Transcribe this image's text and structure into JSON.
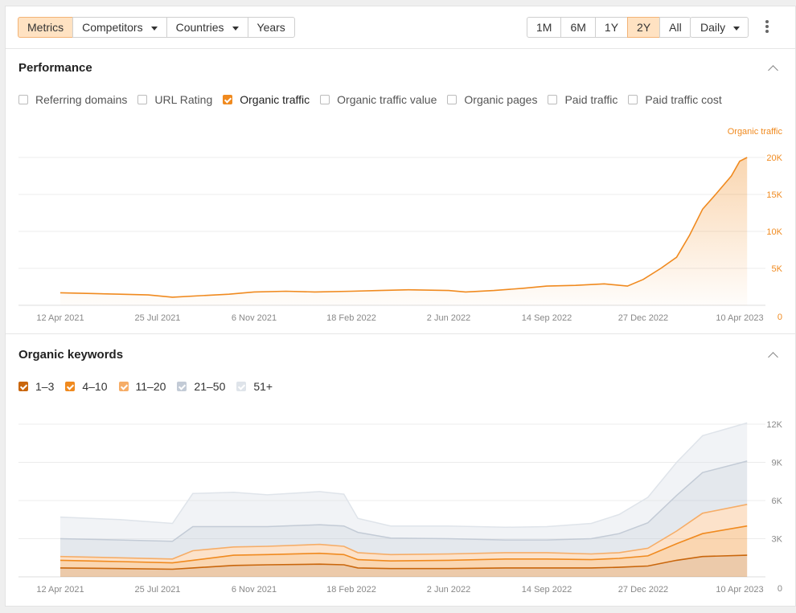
{
  "toolbar": {
    "tabs": [
      {
        "label": "Metrics",
        "active": true
      },
      {
        "label": "Competitors",
        "dropdown": true
      },
      {
        "label": "Countries",
        "dropdown": true
      },
      {
        "label": "Years"
      }
    ],
    "ranges": [
      {
        "label": "1M"
      },
      {
        "label": "6M"
      },
      {
        "label": "1Y"
      },
      {
        "label": "2Y",
        "active": true
      },
      {
        "label": "All"
      }
    ],
    "interval": "Daily"
  },
  "performance": {
    "title": "Performance",
    "metrics": [
      {
        "label": "Referring domains",
        "checked": false
      },
      {
        "label": "URL Rating",
        "checked": false
      },
      {
        "label": "Organic traffic",
        "checked": true
      },
      {
        "label": "Organic traffic value",
        "checked": false
      },
      {
        "label": "Organic pages",
        "checked": false
      },
      {
        "label": "Paid traffic",
        "checked": false
      },
      {
        "label": "Paid traffic cost",
        "checked": false
      }
    ]
  },
  "keywords": {
    "title": "Organic keywords",
    "buckets": [
      {
        "label": "1–3",
        "color": "#c9660c"
      },
      {
        "label": "4–10",
        "color": "#f08a1f"
      },
      {
        "label": "11–20",
        "color": "#f6ad67"
      },
      {
        "label": "21–50",
        "color": "#c3cbd6"
      },
      {
        "label": "51+",
        "color": "#dfe4ea"
      }
    ]
  },
  "colors": {
    "accent": "#f08a1f",
    "accent_light": "#ffe2c2"
  },
  "chart_data": [
    {
      "type": "area",
      "title": "",
      "series_label": "Organic traffic",
      "x_ticks": [
        "12 Apr 2021",
        "25 Jul 2021",
        "6 Nov 2021",
        "18 Feb 2022",
        "2 Jun 2022",
        "14 Sep 2022",
        "27 Dec 2022",
        "10 Apr 2023"
      ],
      "y_ticks": [
        "0",
        "5K",
        "10K",
        "15K",
        "20K"
      ],
      "ylim": [
        0,
        20000
      ],
      "series": [
        {
          "name": "Organic traffic",
          "color": "#f08a1f",
          "x": [
            "2021-04-12",
            "2021-05-15",
            "2021-06-15",
            "2021-07-15",
            "2021-08-10",
            "2021-09-10",
            "2021-10-10",
            "2021-11-06",
            "2021-12-10",
            "2022-01-10",
            "2022-02-18",
            "2022-03-20",
            "2022-04-20",
            "2022-06-02",
            "2022-06-20",
            "2022-07-20",
            "2022-08-20",
            "2022-09-14",
            "2022-10-15",
            "2022-11-15",
            "2022-12-10",
            "2022-12-27",
            "2023-01-15",
            "2023-02-01",
            "2023-02-15",
            "2023-03-01",
            "2023-03-15",
            "2023-04-01",
            "2023-04-10",
            "2023-04-18"
          ],
          "values": [
            1700,
            1600,
            1500,
            1400,
            1100,
            1300,
            1500,
            1800,
            1900,
            1800,
            1900,
            2000,
            2100,
            2000,
            1800,
            2000,
            2300,
            2600,
            2700,
            2900,
            2600,
            3500,
            5000,
            6500,
            9500,
            13000,
            15000,
            17500,
            19500,
            20000
          ]
        }
      ]
    },
    {
      "type": "area",
      "title": "",
      "x_ticks": [
        "12 Apr 2021",
        "25 Jul 2021",
        "6 Nov 2021",
        "18 Feb 2022",
        "2 Jun 2022",
        "14 Sep 2022",
        "27 Dec 2022",
        "10 Apr 2023"
      ],
      "y_ticks": [
        "0",
        "3K",
        "6K",
        "9K",
        "12K"
      ],
      "ylim": [
        0,
        12000
      ],
      "stacked": true,
      "categories": [
        "2021-04-12",
        "2021-06-15",
        "2021-08-10",
        "2021-09-01",
        "2021-10-15",
        "2021-11-20",
        "2022-01-15",
        "2022-02-10",
        "2022-02-25",
        "2022-04-01",
        "2022-06-02",
        "2022-08-01",
        "2022-09-14",
        "2022-11-01",
        "2022-12-01",
        "2023-01-01",
        "2023-02-01",
        "2023-03-01",
        "2023-04-18"
      ],
      "series": [
        {
          "name": "1–3",
          "values": [
            700,
            650,
            600,
            700,
            900,
            950,
            1000,
            950,
            700,
            650,
            650,
            700,
            700,
            700,
            750,
            850,
            1300,
            1600,
            1700
          ]
        },
        {
          "name": "4–10",
          "values": [
            600,
            550,
            500,
            600,
            800,
            800,
            850,
            800,
            650,
            600,
            650,
            700,
            700,
            650,
            700,
            800,
            1300,
            1800,
            2300
          ]
        },
        {
          "name": "11–20",
          "values": [
            300,
            300,
            300,
            750,
            650,
            650,
            700,
            650,
            550,
            500,
            500,
            500,
            500,
            450,
            450,
            600,
            1000,
            1600,
            1700
          ]
        },
        {
          "name": "21–50",
          "values": [
            1400,
            1400,
            1400,
            1900,
            1600,
            1550,
            1550,
            1600,
            1600,
            1300,
            1200,
            1000,
            1000,
            1200,
            1500,
            2000,
            2800,
            3200,
            3400
          ]
        },
        {
          "name": "51+",
          "values": [
            1700,
            1600,
            1400,
            2600,
            2700,
            2500,
            2600,
            2500,
            1100,
            950,
            1000,
            1000,
            1050,
            1200,
            1500,
            2000,
            2600,
            2900,
            3000
          ]
        }
      ]
    }
  ]
}
